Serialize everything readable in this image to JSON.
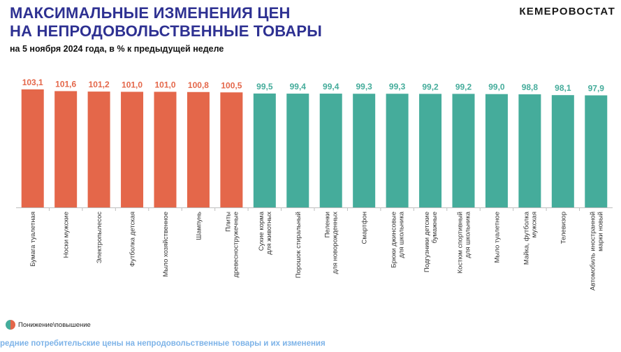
{
  "header": {
    "title_line1": "МАКСИМАЛЬНЫЕ ИЗМЕНЕНИЯ ЦЕН",
    "title_line2": "НА НЕПРОДОВОЛЬСТВЕННЫЕ ТОВАРЫ",
    "subtitle": "на 5 ноября 2024 года, в % к предыдущей неделе",
    "brand": "КЕМЕРОВОСТАТ"
  },
  "legend": {
    "label": "Понижение\\повышение"
  },
  "footer": {
    "text": "редние потребительские цены на непродовольственные товары и их изменения"
  },
  "colors": {
    "increase": "#e4674a",
    "decrease": "#45ac9b",
    "title": "#2e3192",
    "footer": "#7db3e8"
  },
  "chart_data": {
    "type": "bar",
    "categories": [
      "Бумага туалетная",
      "Носки мужские",
      "Электропылесос",
      "Футболка детская",
      "Мыло хозяйственное",
      "Шампунь",
      "Плиты|древесностружечные",
      "Сухие корма|для животных",
      "Порошок стиральный",
      "Пеленки|для новорожденных",
      "Смартфон",
      "Брюки джинсовые|для школьника",
      "Подгузники детские|бумажные",
      "Костюм спортивный|для школьника",
      "Мыло туалетное",
      "Майка, футболка|мужская",
      "Телевизор",
      "Автомобиль иностранной|марки новый"
    ],
    "values": [
      103.1,
      101.6,
      101.2,
      101.0,
      101.0,
      100.8,
      100.5,
      99.5,
      99.4,
      99.4,
      99.3,
      99.3,
      99.2,
      99.2,
      99.0,
      98.8,
      98.1,
      97.9
    ],
    "value_labels": [
      "103,1",
      "101,6",
      "101,2",
      "101,0",
      "101,0",
      "100,8",
      "100,5",
      "99,5",
      "99,4",
      "99,4",
      "99,3",
      "99,3",
      "99,2",
      "99,2",
      "99,0",
      "98,8",
      "98,1",
      "97,9"
    ],
    "colors": [
      "#e4674a",
      "#e4674a",
      "#e4674a",
      "#e4674a",
      "#e4674a",
      "#e4674a",
      "#e4674a",
      "#45ac9b",
      "#45ac9b",
      "#45ac9b",
      "#45ac9b",
      "#45ac9b",
      "#45ac9b",
      "#45ac9b",
      "#45ac9b",
      "#45ac9b",
      "#45ac9b",
      "#45ac9b"
    ],
    "ylim": [
      0,
      103.1
    ],
    "grid": false,
    "legend_position": "bottom-left"
  }
}
